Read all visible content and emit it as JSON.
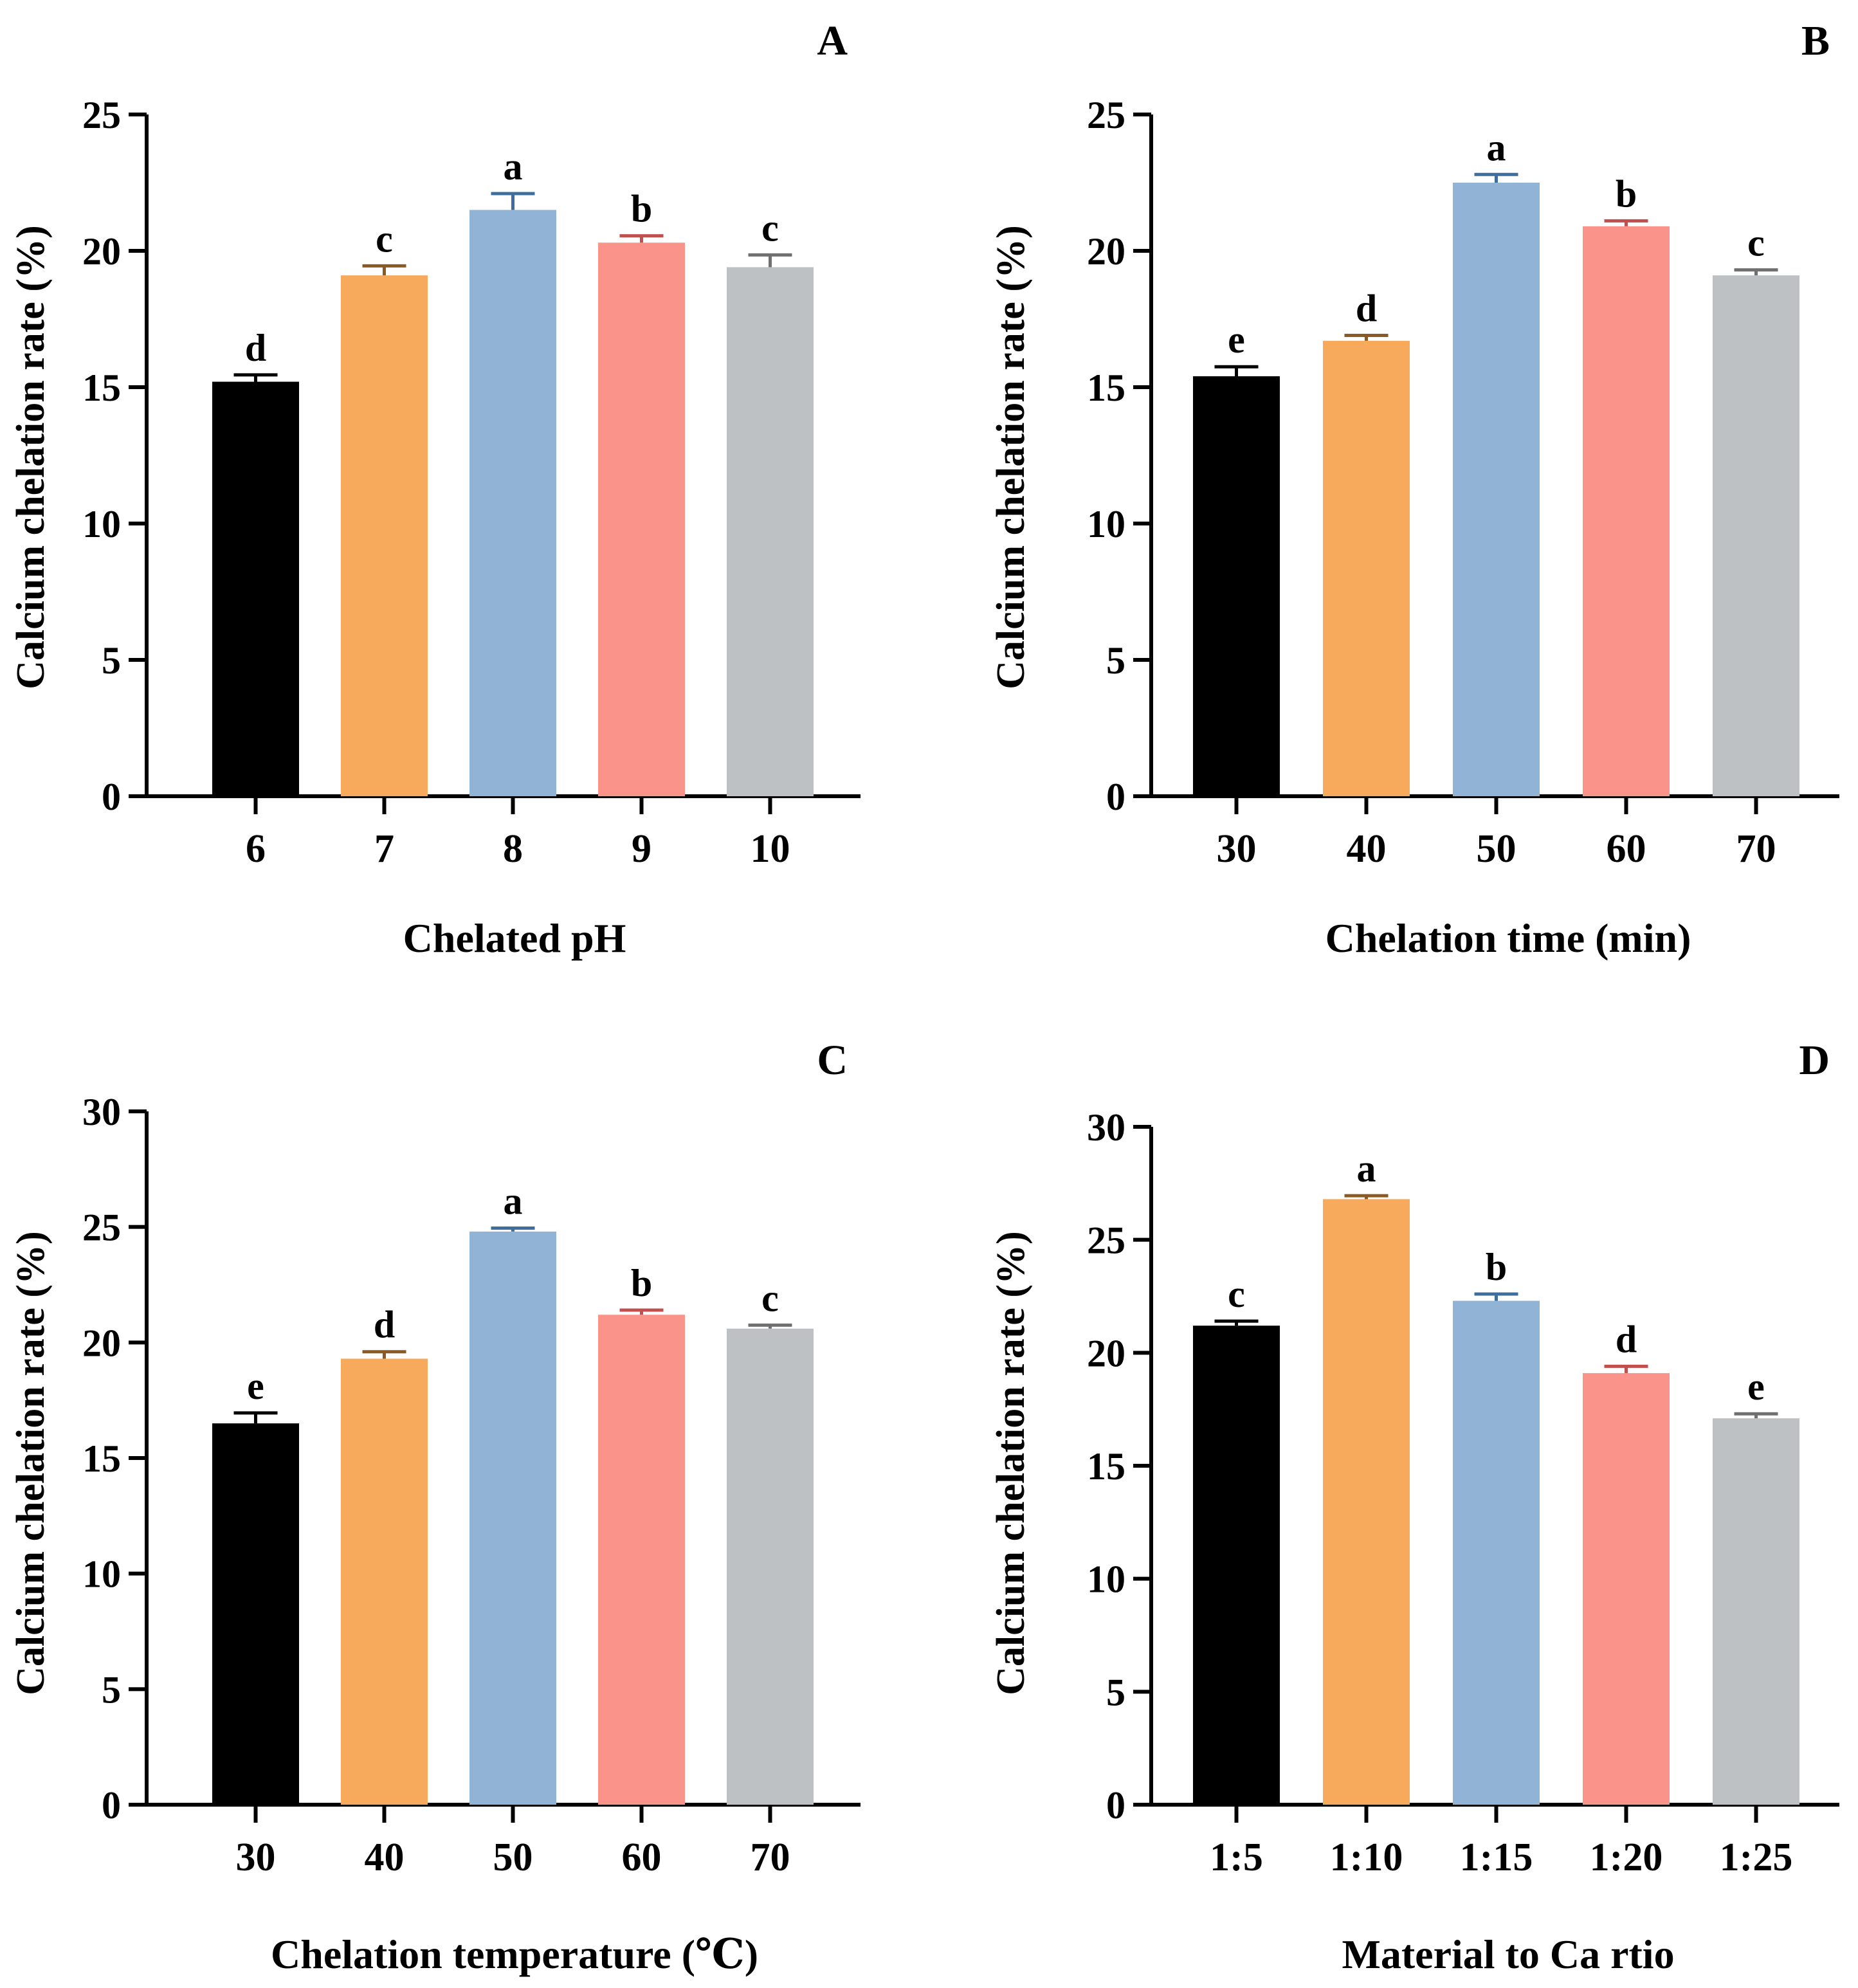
{
  "colors": [
    "#000000",
    "#F7A95C",
    "#91B4D6",
    "#FA938A",
    "#BDC1C4"
  ],
  "errorbar_colors": [
    "#000000",
    "#8A5A22",
    "#3E6E9E",
    "#C0504D",
    "#707070"
  ],
  "chart_data": [
    {
      "panel": "A",
      "type": "bar",
      "categories": [
        "6",
        "7",
        "8",
        "9",
        "10"
      ],
      "values": [
        15.2,
        19.1,
        21.5,
        20.3,
        19.4
      ],
      "errors": [
        0.25,
        0.35,
        0.6,
        0.25,
        0.45
      ],
      "significance": [
        "d",
        "c",
        "a",
        "b",
        "c"
      ],
      "xlabel": "Chelated pH",
      "ylabel": "Calcium chelation rate (%)",
      "ylim": [
        0,
        25
      ],
      "yticks": [
        "0",
        "5",
        "10",
        "15",
        "20",
        "25"
      ],
      "grid": false
    },
    {
      "panel": "B",
      "type": "bar",
      "categories": [
        "30",
        "40",
        "50",
        "60",
        "70"
      ],
      "values": [
        15.4,
        16.7,
        22.5,
        20.9,
        19.1
      ],
      "errors": [
        0.35,
        0.2,
        0.3,
        0.2,
        0.2
      ],
      "significance": [
        "e",
        "d",
        "a",
        "b",
        "c"
      ],
      "xlabel": "Chelation time (min)",
      "ylabel": "Calcium chelation rate (%)",
      "ylim": [
        0,
        25
      ],
      "yticks": [
        "0",
        "5",
        "10",
        "15",
        "20",
        "25"
      ],
      "grid": false
    },
    {
      "panel": "C",
      "type": "bar",
      "categories": [
        "30",
        "40",
        "50",
        "60",
        "70"
      ],
      "values": [
        16.5,
        19.3,
        24.8,
        21.2,
        20.6
      ],
      "errors": [
        0.45,
        0.3,
        0.15,
        0.2,
        0.15
      ],
      "significance": [
        "e",
        "d",
        "a",
        "b",
        "c"
      ],
      "xlabel": "Chelation temperature (℃)",
      "ylabel": "Calcium chelation rate (%)",
      "ylim": [
        0,
        30
      ],
      "yticks": [
        "0",
        "5",
        "10",
        "15",
        "20",
        "25",
        "30"
      ],
      "grid": false
    },
    {
      "panel": "D",
      "type": "bar",
      "categories": [
        "1:5",
        "1:10",
        "1:15",
        "1:20",
        "1:25"
      ],
      "values": [
        21.2,
        26.8,
        22.3,
        19.1,
        17.1
      ],
      "errors": [
        0.2,
        0.15,
        0.3,
        0.3,
        0.2
      ],
      "significance": [
        "c",
        "a",
        "b",
        "d",
        "e"
      ],
      "xlabel": "Material to Ca rtio",
      "ylabel": "Calcium chelation rate (%)",
      "ylim": [
        0,
        30
      ],
      "yticks": [
        "0",
        "5",
        "10",
        "15",
        "20",
        "25",
        "30"
      ],
      "grid": false
    }
  ]
}
